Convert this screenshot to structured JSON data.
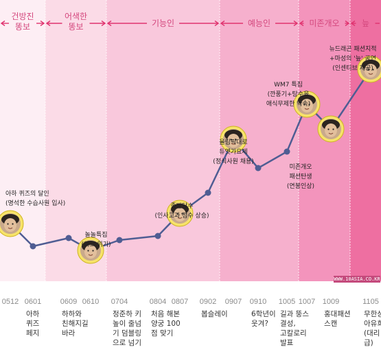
{
  "chart_data": {
    "type": "line",
    "title": "",
    "xlabel": "",
    "ylabel": "",
    "phases": [
      "건방진\n똥보",
      "어색한\n똥보",
      "기능인",
      "예능인",
      "미존개오",
      "늪"
    ],
    "phase_colors": [
      "#fdeef4",
      "#fbdbe7",
      "#f9c8dc",
      "#f6b0cd",
      "#f394bc",
      "#ee6fa1"
    ],
    "arrow_color": "#e0336f",
    "line_color": "#4f5d93",
    "x": [
      "0512",
      "0601",
      "0609",
      "0610",
      "0704",
      "0804",
      "0807",
      "0902",
      "0907",
      "0910",
      "1005",
      "1007",
      "1009",
      "1105"
    ],
    "y": [
      28,
      17,
      21,
      15,
      20,
      22,
      33,
      43,
      69,
      55,
      63,
      86,
      74,
      103
    ],
    "events": [
      "",
      "아하\n퀴즈\n페지",
      "하하와\n친해지길\n바라",
      "",
      "정준하 키\n높이 줄넘\n기 덤블링\n으로 넘기",
      "처음 해본\n양궁 100\n점 맞기",
      "",
      "봅슬레이",
      "",
      "6학년이\n웃겨?",
      "길과 뚱스\n결성,\n고칼로리\n발표",
      "",
      "홍대패션\n스캔",
      "무한상사\n아유희\n(대리 진\n급)"
    ],
    "notes": [
      "아하 퀴즈의 달인\n(명석한 수습사원 입사)",
      "놀놀특집\n(하고 위기)",
      "",
      "족발당수\n(인사고과 점수 상승)",
      "올림픽대로\n듀엣가요제\n(정식사원 채용)",
      "WM7 특집\n(깐풍기+탕수육\n애식무제한 약속)",
      "미존개오\n패션탄생\n(연봉인상)",
      "뉴드래곤 패션지적\n+마성의 '늪' 공연\n(인센티브 제공)"
    ],
    "watermark": "WWW.10ASIA.CO.KR"
  }
}
